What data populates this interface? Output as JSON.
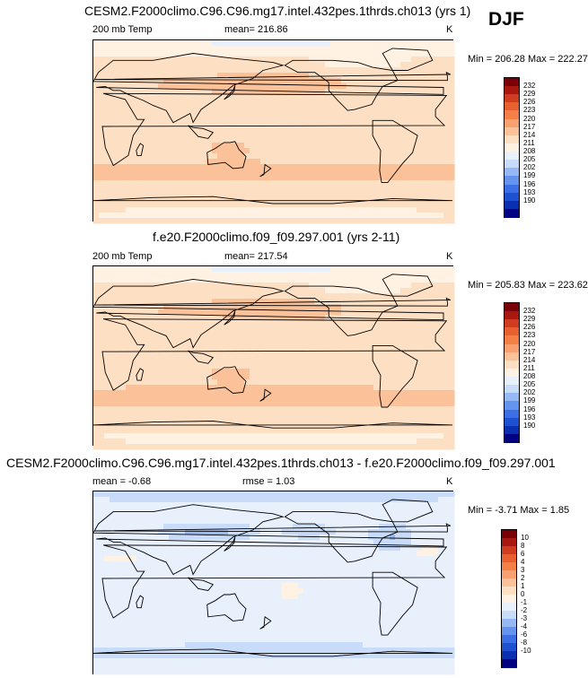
{
  "season": "DJF",
  "colors": {
    "abs_palette": [
      "#000080",
      "#0a2fb0",
      "#1e50d2",
      "#3c6ee6",
      "#6494ee",
      "#96b9f5",
      "#c8dcfa",
      "#e8f0fc",
      "#fff2e2",
      "#fde0c4",
      "#fbc29a",
      "#f8a070",
      "#f48048",
      "#e86030",
      "#d03c20",
      "#a81810",
      "#7a0008"
    ],
    "diff_palette": [
      "#000080",
      "#0a2fb0",
      "#1e50d2",
      "#3c6ee6",
      "#6494ee",
      "#96b9f5",
      "#c8dcfa",
      "#e8f0fc",
      "#fff2e2",
      "#fde0c4",
      "#fbc29a",
      "#f8a070",
      "#f48048",
      "#e86030",
      "#d03c20",
      "#a81810",
      "#7a0008"
    ]
  },
  "panels": [
    {
      "id": "test",
      "title": "CESM2.F2000climo.C96.C96.mg17.intel.432pes.1thrds.ch013 (yrs 1)",
      "left_label": "200 mb Temp",
      "center_label": "mean= 216.86",
      "right_label": "K",
      "minmax": "Min = 206.28 Max = 222.27",
      "colorbar_ticks": [
        "232",
        "229",
        "226",
        "223",
        "220",
        "217",
        "214",
        "211",
        "208",
        "205",
        "202",
        "199",
        "196",
        "193",
        "190"
      ],
      "colorbar_palette": "abs_palette",
      "field": "abs"
    },
    {
      "id": "ref",
      "title": "f.e20.F2000climo.f09_f09.297.001 (yrs 2-11)",
      "left_label": "200 mb Temp",
      "center_label": "mean= 217.54",
      "right_label": "K",
      "minmax": "Min = 205.83 Max = 223.62",
      "colorbar_ticks": [
        "232",
        "229",
        "226",
        "223",
        "220",
        "217",
        "214",
        "211",
        "208",
        "205",
        "202",
        "199",
        "196",
        "193",
        "190"
      ],
      "colorbar_palette": "abs_palette",
      "field": "abs"
    },
    {
      "id": "diff",
      "title": "CESM2.F2000climo.C96.C96.mg17.intel.432pes.1thrds.ch013 - f.e20.F2000climo.f09_f09.297.001",
      "left_label": "mean =  -0.68",
      "center_label": "rmse =   1.03",
      "right_label": "K",
      "minmax": "Min =  -3.71 Max =   1.85",
      "colorbar_ticks": [
        "10",
        "8",
        "6",
        "4",
        "3",
        "2",
        "1",
        "0",
        "-1",
        "-2",
        "-3",
        "-4",
        "-6",
        "-8",
        "-10"
      ],
      "colorbar_palette": "diff_palette",
      "field": "diff"
    }
  ]
}
